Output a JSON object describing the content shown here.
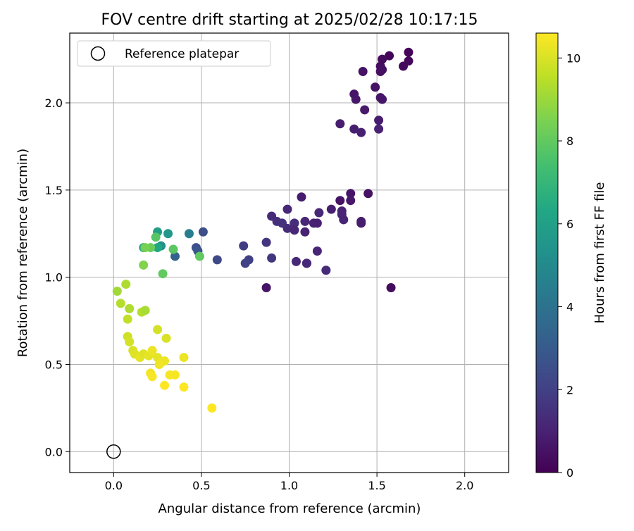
{
  "chart_data": {
    "type": "scatter",
    "title": "FOV centre drift starting at 2025/02/28 10:17:15",
    "xlabel": "Angular distance from reference (arcmin)",
    "ylabel": "Rotation from reference (arcmin)",
    "xlim": [
      -0.25,
      2.25
    ],
    "ylim": [
      -0.12,
      2.4
    ],
    "xticks": [
      0.0,
      0.5,
      1.0,
      1.5,
      2.0
    ],
    "xtick_labels": [
      "0.0",
      "0.5",
      "1.0",
      "1.5",
      "2.0"
    ],
    "yticks": [
      0.0,
      0.5,
      1.0,
      1.5,
      2.0
    ],
    "ytick_labels": [
      "0.0",
      "0.5",
      "1.0",
      "1.5",
      "2.0"
    ],
    "grid": true,
    "legend": {
      "placement": "top-left",
      "entries": [
        "Reference platepar"
      ]
    },
    "colorbar": {
      "label": "Hours from first FF file",
      "colormap": "viridis",
      "range": [
        0,
        10.6
      ],
      "ticks": [
        0,
        2,
        4,
        6,
        8,
        10
      ],
      "tick_labels": [
        "0",
        "2",
        "4",
        "6",
        "8",
        "10"
      ]
    },
    "reference": {
      "x": 0.0,
      "y": 0.0,
      "label": "Reference platepar"
    },
    "points": [
      {
        "x": 1.68,
        "y": 2.29,
        "c": 0.15
      },
      {
        "x": 1.68,
        "y": 2.24,
        "c": 0.2
      },
      {
        "x": 1.65,
        "y": 2.21,
        "c": 0.25
      },
      {
        "x": 1.57,
        "y": 2.27,
        "c": 0.1
      },
      {
        "x": 1.53,
        "y": 2.25,
        "c": 0.3
      },
      {
        "x": 1.52,
        "y": 2.21,
        "c": 0.35
      },
      {
        "x": 1.52,
        "y": 2.18,
        "c": 0.4
      },
      {
        "x": 1.53,
        "y": 2.19,
        "c": 0.45
      },
      {
        "x": 1.42,
        "y": 2.18,
        "c": 0.5
      },
      {
        "x": 1.49,
        "y": 2.09,
        "c": 0.55
      },
      {
        "x": 1.37,
        "y": 2.05,
        "c": 0.6
      },
      {
        "x": 1.38,
        "y": 2.02,
        "c": 0.65
      },
      {
        "x": 1.53,
        "y": 2.02,
        "c": 0.7
      },
      {
        "x": 1.43,
        "y": 1.96,
        "c": 0.75
      },
      {
        "x": 1.51,
        "y": 1.9,
        "c": 0.8
      },
      {
        "x": 1.29,
        "y": 1.88,
        "c": 0.85
      },
      {
        "x": 1.37,
        "y": 1.85,
        "c": 0.9
      },
      {
        "x": 1.41,
        "y": 1.83,
        "c": 0.95
      },
      {
        "x": 1.51,
        "y": 1.85,
        "c": 1.0
      },
      {
        "x": 1.52,
        "y": 2.03,
        "c": 0.6
      },
      {
        "x": 1.45,
        "y": 1.48,
        "c": 0.5
      },
      {
        "x": 1.35,
        "y": 1.48,
        "c": 0.6
      },
      {
        "x": 1.35,
        "y": 1.44,
        "c": 0.7
      },
      {
        "x": 1.29,
        "y": 1.44,
        "c": 0.55
      },
      {
        "x": 1.07,
        "y": 1.46,
        "c": 0.8
      },
      {
        "x": 1.24,
        "y": 1.39,
        "c": 0.9
      },
      {
        "x": 1.3,
        "y": 1.38,
        "c": 1.0
      },
      {
        "x": 1.3,
        "y": 1.36,
        "c": 1.1
      },
      {
        "x": 1.31,
        "y": 1.33,
        "c": 1.05
      },
      {
        "x": 1.41,
        "y": 1.32,
        "c": 0.9
      },
      {
        "x": 1.41,
        "y": 1.31,
        "c": 0.85
      },
      {
        "x": 1.17,
        "y": 1.37,
        "c": 1.2
      },
      {
        "x": 0.99,
        "y": 1.39,
        "c": 1.2
      },
      {
        "x": 0.9,
        "y": 1.35,
        "c": 1.3
      },
      {
        "x": 0.93,
        "y": 1.32,
        "c": 1.4
      },
      {
        "x": 0.96,
        "y": 1.31,
        "c": 1.5
      },
      {
        "x": 0.99,
        "y": 1.28,
        "c": 1.3
      },
      {
        "x": 1.03,
        "y": 1.31,
        "c": 1.4
      },
      {
        "x": 1.03,
        "y": 1.27,
        "c": 1.2
      },
      {
        "x": 1.09,
        "y": 1.32,
        "c": 1.1
      },
      {
        "x": 1.09,
        "y": 1.26,
        "c": 1.0
      },
      {
        "x": 1.14,
        "y": 1.31,
        "c": 1.0
      },
      {
        "x": 1.16,
        "y": 1.31,
        "c": 0.95
      },
      {
        "x": 1.16,
        "y": 1.15,
        "c": 1.1
      },
      {
        "x": 1.04,
        "y": 1.09,
        "c": 1.2
      },
      {
        "x": 1.1,
        "y": 1.08,
        "c": 1.1
      },
      {
        "x": 1.1,
        "y": 1.08,
        "c": 1.15
      },
      {
        "x": 1.21,
        "y": 1.04,
        "c": 1.3
      },
      {
        "x": 0.87,
        "y": 1.2,
        "c": 1.6
      },
      {
        "x": 0.9,
        "y": 1.11,
        "c": 1.7
      },
      {
        "x": 0.74,
        "y": 1.18,
        "c": 1.9
      },
      {
        "x": 0.77,
        "y": 1.1,
        "c": 2.0
      },
      {
        "x": 0.75,
        "y": 1.08,
        "c": 2.1
      },
      {
        "x": 0.87,
        "y": 0.94,
        "c": 0.6
      },
      {
        "x": 1.58,
        "y": 0.94,
        "c": 0.3
      },
      {
        "x": 0.59,
        "y": 1.1,
        "c": 2.3
      },
      {
        "x": 0.51,
        "y": 1.26,
        "c": 2.5
      },
      {
        "x": 0.47,
        "y": 1.17,
        "c": 2.6
      },
      {
        "x": 0.48,
        "y": 1.15,
        "c": 2.8
      },
      {
        "x": 0.35,
        "y": 1.12,
        "c": 3.3
      },
      {
        "x": 0.43,
        "y": 1.25,
        "c": 4.5
      },
      {
        "x": 0.31,
        "y": 1.25,
        "c": 5.6
      },
      {
        "x": 0.25,
        "y": 1.26,
        "c": 5.9
      },
      {
        "x": 0.27,
        "y": 1.18,
        "c": 5.3
      },
      {
        "x": 0.25,
        "y": 1.17,
        "c": 6.3
      },
      {
        "x": 0.17,
        "y": 1.17,
        "c": 6.7
      },
      {
        "x": 0.24,
        "y": 1.23,
        "c": 7.8
      },
      {
        "x": 0.21,
        "y": 1.17,
        "c": 8.2
      },
      {
        "x": 0.18,
        "y": 1.17,
        "c": 8.4
      },
      {
        "x": 0.34,
        "y": 1.16,
        "c": 7.9
      },
      {
        "x": 0.49,
        "y": 1.12,
        "c": 8.0
      },
      {
        "x": 0.28,
        "y": 1.02,
        "c": 8.0
      },
      {
        "x": 0.17,
        "y": 1.07,
        "c": 8.6
      },
      {
        "x": 0.02,
        "y": 0.92,
        "c": 9.1
      },
      {
        "x": 0.07,
        "y": 0.96,
        "c": 9.3
      },
      {
        "x": 0.04,
        "y": 0.85,
        "c": 9.4
      },
      {
        "x": 0.09,
        "y": 0.82,
        "c": 9.3
      },
      {
        "x": 0.16,
        "y": 0.8,
        "c": 9.4
      },
      {
        "x": 0.18,
        "y": 0.81,
        "c": 9.2
      },
      {
        "x": 0.08,
        "y": 0.76,
        "c": 9.6
      },
      {
        "x": 0.08,
        "y": 0.66,
        "c": 9.8
      },
      {
        "x": 0.09,
        "y": 0.63,
        "c": 9.9
      },
      {
        "x": 0.25,
        "y": 0.7,
        "c": 9.9
      },
      {
        "x": 0.3,
        "y": 0.65,
        "c": 10.0
      },
      {
        "x": 0.11,
        "y": 0.58,
        "c": 10.0
      },
      {
        "x": 0.12,
        "y": 0.56,
        "c": 10.1
      },
      {
        "x": 0.15,
        "y": 0.54,
        "c": 10.2
      },
      {
        "x": 0.17,
        "y": 0.56,
        "c": 10.1
      },
      {
        "x": 0.2,
        "y": 0.55,
        "c": 10.2
      },
      {
        "x": 0.22,
        "y": 0.58,
        "c": 10.3
      },
      {
        "x": 0.25,
        "y": 0.54,
        "c": 10.2
      },
      {
        "x": 0.27,
        "y": 0.51,
        "c": 10.3
      },
      {
        "x": 0.29,
        "y": 0.52,
        "c": 10.3
      },
      {
        "x": 0.26,
        "y": 0.5,
        "c": 10.4
      },
      {
        "x": 0.4,
        "y": 0.54,
        "c": 10.3
      },
      {
        "x": 0.21,
        "y": 0.45,
        "c": 10.4
      },
      {
        "x": 0.22,
        "y": 0.43,
        "c": 10.5
      },
      {
        "x": 0.32,
        "y": 0.44,
        "c": 10.5
      },
      {
        "x": 0.35,
        "y": 0.44,
        "c": 10.5
      },
      {
        "x": 0.29,
        "y": 0.38,
        "c": 10.6
      },
      {
        "x": 0.4,
        "y": 0.37,
        "c": 10.6
      },
      {
        "x": 0.56,
        "y": 0.25,
        "c": 10.6
      }
    ]
  }
}
